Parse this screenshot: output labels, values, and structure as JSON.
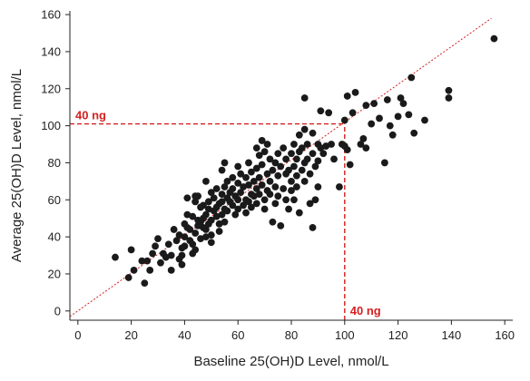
{
  "chart_data": {
    "type": "scatter",
    "title": "",
    "xlabel": "Baseline 25(OH)D Level, nmol/L",
    "ylabel": "Average 25(OH)D Level, nmol/L",
    "xlim": [
      -3,
      163
    ],
    "ylim": [
      -5,
      162
    ],
    "x_ticks": [
      0,
      20,
      40,
      60,
      80,
      100,
      120,
      140,
      160
    ],
    "y_ticks": [
      0,
      20,
      40,
      60,
      80,
      100,
      120,
      140,
      160
    ],
    "grid": false,
    "legend": "none",
    "identity_line": {
      "from": [
        -3,
        -3
      ],
      "to": [
        155,
        158
      ],
      "style": "dotted",
      "color": "#d42020"
    },
    "reference_lines": {
      "color": "#d42020",
      "style": "dashed",
      "horizontal": {
        "y": 101,
        "x_from": -3,
        "x_to": 100,
        "label": "40 ng"
      },
      "vertical": {
        "x": 100,
        "y_from": -5,
        "y_to": 101,
        "label": "40 ng"
      }
    },
    "point_color": "#1a1a1a",
    "series": [
      {
        "points": [
          [
            14,
            29
          ],
          [
            19,
            18
          ],
          [
            20,
            33
          ],
          [
            21,
            22
          ],
          [
            24,
            27
          ],
          [
            25,
            15
          ],
          [
            26,
            27
          ],
          [
            27,
            22
          ],
          [
            28,
            31
          ],
          [
            29,
            35
          ],
          [
            30,
            39
          ],
          [
            31,
            26
          ],
          [
            32,
            31
          ],
          [
            33,
            29
          ],
          [
            34,
            36
          ],
          [
            35,
            30
          ],
          [
            35,
            22
          ],
          [
            36,
            44
          ],
          [
            37,
            38
          ],
          [
            38,
            41
          ],
          [
            38,
            28
          ],
          [
            39,
            30
          ],
          [
            39,
            34
          ],
          [
            39,
            25
          ],
          [
            40,
            40
          ],
          [
            40,
            47
          ],
          [
            40,
            35
          ],
          [
            41,
            61
          ],
          [
            41,
            52
          ],
          [
            41,
            45
          ],
          [
            42,
            44
          ],
          [
            42,
            38
          ],
          [
            43,
            51
          ],
          [
            43,
            36
          ],
          [
            43,
            31
          ],
          [
            44,
            62
          ],
          [
            44,
            59
          ],
          [
            44,
            42
          ],
          [
            44,
            33
          ],
          [
            45,
            62
          ],
          [
            45,
            49
          ],
          [
            45,
            46
          ],
          [
            46,
            56
          ],
          [
            46,
            39
          ],
          [
            46,
            48
          ],
          [
            47,
            57
          ],
          [
            47,
            45
          ],
          [
            47,
            50
          ],
          [
            48,
            70
          ],
          [
            48,
            52
          ],
          [
            48,
            40
          ],
          [
            48,
            44
          ],
          [
            49,
            59
          ],
          [
            49,
            55
          ],
          [
            49,
            47
          ],
          [
            50,
            64
          ],
          [
            50,
            49
          ],
          [
            50,
            41
          ],
          [
            50,
            37
          ],
          [
            51,
            54
          ],
          [
            51,
            61
          ],
          [
            52,
            66
          ],
          [
            52,
            51
          ],
          [
            52,
            56
          ],
          [
            53,
            58
          ],
          [
            53,
            47
          ],
          [
            53,
            43
          ],
          [
            54,
            76
          ],
          [
            54,
            63
          ],
          [
            54,
            52
          ],
          [
            54,
            59
          ],
          [
            55,
            80
          ],
          [
            55,
            67
          ],
          [
            55,
            55
          ],
          [
            55,
            48
          ],
          [
            56,
            70
          ],
          [
            56,
            61
          ],
          [
            56,
            54
          ],
          [
            57,
            59
          ],
          [
            57,
            64
          ],
          [
            58,
            72
          ],
          [
            58,
            66
          ],
          [
            58,
            57
          ],
          [
            59,
            62
          ],
          [
            59,
            52
          ],
          [
            60,
            78
          ],
          [
            60,
            69
          ],
          [
            60,
            60
          ],
          [
            60,
            55
          ],
          [
            61,
            74
          ],
          [
            61,
            64
          ],
          [
            62,
            57
          ],
          [
            62,
            67
          ],
          [
            63,
            72
          ],
          [
            63,
            60
          ],
          [
            63,
            53
          ],
          [
            64,
            80
          ],
          [
            64,
            68
          ],
          [
            64,
            59
          ],
          [
            65,
            75
          ],
          [
            65,
            63
          ],
          [
            65,
            56
          ],
          [
            66,
            70
          ],
          [
            66,
            62
          ],
          [
            67,
            88
          ],
          [
            67,
            77
          ],
          [
            67,
            66
          ],
          [
            67,
            58
          ],
          [
            68,
            84
          ],
          [
            68,
            72
          ],
          [
            68,
            63
          ],
          [
            69,
            92
          ],
          [
            69,
            79
          ],
          [
            69,
            68
          ],
          [
            70,
            86
          ],
          [
            70,
            60
          ],
          [
            70,
            55
          ],
          [
            71,
            90
          ],
          [
            71,
            74
          ],
          [
            71,
            65
          ],
          [
            72,
            82
          ],
          [
            72,
            70
          ],
          [
            72,
            63
          ],
          [
            73,
            76
          ],
          [
            73,
            48
          ],
          [
            74,
            80
          ],
          [
            74,
            67
          ],
          [
            74,
            58
          ],
          [
            75,
            85
          ],
          [
            75,
            73
          ],
          [
            75,
            62
          ],
          [
            76,
            78
          ],
          [
            76,
            46
          ],
          [
            77,
            88
          ],
          [
            77,
            66
          ],
          [
            78,
            82
          ],
          [
            78,
            74
          ],
          [
            78,
            60
          ],
          [
            79,
            76
          ],
          [
            79,
            55
          ],
          [
            80,
            85
          ],
          [
            80,
            70
          ],
          [
            80,
            65
          ],
          [
            81,
            90
          ],
          [
            81,
            78
          ],
          [
            81,
            60
          ],
          [
            82,
            82
          ],
          [
            82,
            73
          ],
          [
            82,
            67
          ],
          [
            83,
            95
          ],
          [
            83,
            86
          ],
          [
            83,
            53
          ],
          [
            84,
            88
          ],
          [
            84,
            76
          ],
          [
            85,
            98
          ],
          [
            85,
            80
          ],
          [
            85,
            70
          ],
          [
            85,
            115
          ],
          [
            86,
            90
          ],
          [
            86,
            82
          ],
          [
            87,
            74
          ],
          [
            87,
            58
          ],
          [
            88,
            96
          ],
          [
            88,
            85
          ],
          [
            88,
            45
          ],
          [
            89,
            78
          ],
          [
            89,
            60
          ],
          [
            90,
            90
          ],
          [
            90,
            81
          ],
          [
            90,
            67
          ],
          [
            91,
            88
          ],
          [
            91,
            108
          ],
          [
            92,
            85
          ],
          [
            93,
            89
          ],
          [
            94,
            107
          ],
          [
            95,
            90
          ],
          [
            96,
            82
          ],
          [
            98,
            67
          ],
          [
            99,
            90
          ],
          [
            100,
            89
          ],
          [
            100,
            103
          ],
          [
            101,
            116
          ],
          [
            101,
            87
          ],
          [
            102,
            79
          ],
          [
            103,
            107
          ],
          [
            104,
            118
          ],
          [
            106,
            90
          ],
          [
            107,
            93
          ],
          [
            108,
            111
          ],
          [
            108,
            88
          ],
          [
            110,
            101
          ],
          [
            111,
            112
          ],
          [
            113,
            104
          ],
          [
            115,
            80
          ],
          [
            116,
            114
          ],
          [
            117,
            100
          ],
          [
            118,
            95
          ],
          [
            120,
            105
          ],
          [
            121,
            115
          ],
          [
            122,
            112
          ],
          [
            124,
            106
          ],
          [
            125,
            126
          ],
          [
            126,
            96
          ],
          [
            130,
            103
          ],
          [
            139,
            119
          ],
          [
            139,
            115
          ],
          [
            156,
            147
          ]
        ]
      }
    ]
  }
}
